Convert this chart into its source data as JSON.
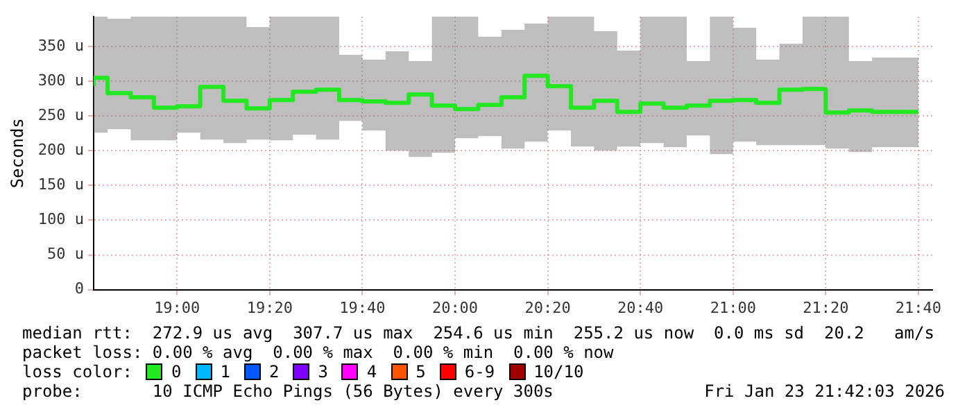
{
  "chart_data": {
    "type": "step",
    "ylabel": "Seconds",
    "legend_title": "loss color:",
    "legend": "bottom",
    "grid": true,
    "x": [
      18.7,
      18.75,
      18.8333,
      18.9167,
      19,
      19.0833,
      19.1667,
      19.25,
      19.3333,
      19.4167,
      19.5,
      19.5833,
      19.6667,
      19.75,
      19.8333,
      19.9167,
      20,
      20.0833,
      20.1667,
      20.25,
      20.3333,
      20.4167,
      20.5,
      20.5833,
      20.6667,
      20.75,
      20.8333,
      20.9167,
      21,
      21.0833,
      21.1667,
      21.25,
      21.3333,
      21.4167,
      21.5,
      21.5833,
      21.6667
    ],
    "xlim": [
      18.7,
      21.7167
    ],
    "xticks": [
      {
        "value": 19,
        "label": "19:00"
      },
      {
        "value": 19.3333,
        "label": "19:20"
      },
      {
        "value": 19.6667,
        "label": "19:40"
      },
      {
        "value": 20,
        "label": "20:00"
      },
      {
        "value": 20.3333,
        "label": "20:20"
      },
      {
        "value": 20.6667,
        "label": "20:40"
      },
      {
        "value": 21,
        "label": "21:00"
      },
      {
        "value": 21.3333,
        "label": "21:20"
      },
      {
        "value": 21.6667,
        "label": "21:40"
      }
    ],
    "ylim": [
      0,
      393
    ],
    "yticks": [
      0,
      {
        "value": 50,
        "label": "50 u"
      },
      {
        "value": 100,
        "label": "100 u"
      },
      {
        "value": 150,
        "label": "150 u"
      },
      {
        "value": 200,
        "label": "200 u"
      },
      {
        "value": 250,
        "label": "250 u"
      },
      {
        "value": 300,
        "label": "300 u"
      },
      {
        "value": 350,
        "label": "350 u"
      }
    ],
    "series": [
      {
        "name": "0",
        "color": "#22e822",
        "values": [
          293,
          305,
          283,
          277,
          262,
          264,
          292,
          272,
          261,
          273,
          285,
          288,
          273,
          271,
          269,
          281,
          265,
          260,
          266,
          277,
          308,
          293,
          262,
          272,
          256,
          268,
          262,
          265,
          272,
          273,
          269,
          288,
          289,
          255,
          258,
          256,
          256
        ],
        "lower": [
          213,
          226,
          231,
          215,
          215,
          226,
          216,
          211,
          216,
          215,
          223,
          216,
          243,
          229,
          200,
          191,
          197,
          218,
          221,
          203,
          213,
          229,
          206,
          200,
          206,
          211,
          205,
          222,
          195,
          213,
          208,
          208,
          208,
          203,
          198,
          205,
          205
        ],
        "upper": [
          393,
          393,
          390,
          393,
          393,
          393,
          393,
          393,
          378,
          393,
          393,
          393,
          338,
          331,
          343,
          329,
          393,
          393,
          364,
          374,
          383,
          393,
          393,
          372,
          344,
          393,
          393,
          329,
          393,
          377,
          331,
          354,
          393,
          393,
          329,
          334,
          334
        ]
      },
      {
        "name": "1",
        "color": "#00b8ff",
        "values": [
          null,
          null,
          null,
          null,
          null,
          null,
          null,
          null,
          null,
          null,
          null,
          null,
          null,
          null,
          null,
          null,
          null,
          null,
          null,
          null,
          null,
          null,
          null,
          null,
          null,
          null,
          null,
          null,
          null,
          null,
          null,
          null,
          null,
          null,
          null,
          null,
          null
        ]
      },
      {
        "name": "2",
        "color": "#0059ff",
        "values": [
          null,
          null,
          null,
          null,
          null,
          null,
          null,
          null,
          null,
          null,
          null,
          null,
          null,
          null,
          null,
          null,
          null,
          null,
          null,
          null,
          null,
          null,
          null,
          null,
          null,
          null,
          null,
          null,
          null,
          null,
          null,
          null,
          null,
          null,
          null,
          null,
          null
        ]
      },
      {
        "name": "3",
        "color": "#7e00ff",
        "values": [
          null,
          null,
          null,
          null,
          null,
          null,
          null,
          null,
          null,
          null,
          null,
          null,
          null,
          null,
          null,
          null,
          null,
          null,
          null,
          null,
          null,
          null,
          null,
          null,
          null,
          null,
          null,
          null,
          null,
          null,
          null,
          null,
          null,
          null,
          null,
          null,
          null
        ]
      },
      {
        "name": "4",
        "color": "#ff00ff",
        "values": [
          null,
          null,
          null,
          null,
          null,
          null,
          null,
          null,
          null,
          null,
          null,
          null,
          null,
          null,
          null,
          null,
          null,
          null,
          null,
          null,
          null,
          null,
          null,
          null,
          null,
          null,
          null,
          null,
          null,
          null,
          null,
          null,
          null,
          null,
          null,
          null,
          null
        ]
      },
      {
        "name": "5",
        "color": "#ff5500",
        "values": [
          null,
          null,
          null,
          null,
          null,
          null,
          null,
          null,
          null,
          null,
          null,
          null,
          null,
          null,
          null,
          null,
          null,
          null,
          null,
          null,
          null,
          null,
          null,
          null,
          null,
          null,
          null,
          null,
          null,
          null,
          null,
          null,
          null,
          null,
          null,
          null,
          null
        ]
      },
      {
        "name": "6-9",
        "color": "#ff0000",
        "values": [
          null,
          null,
          null,
          null,
          null,
          null,
          null,
          null,
          null,
          null,
          null,
          null,
          null,
          null,
          null,
          null,
          null,
          null,
          null,
          null,
          null,
          null,
          null,
          null,
          null,
          null,
          null,
          null,
          null,
          null,
          null,
          null,
          null,
          null,
          null,
          null,
          null
        ]
      },
      {
        "name": "10/10",
        "color": "#a10000",
        "values": [
          null,
          null,
          null,
          null,
          null,
          null,
          null,
          null,
          null,
          null,
          null,
          null,
          null,
          null,
          null,
          null,
          null,
          null,
          null,
          null,
          null,
          null,
          null,
          null,
          null,
          null,
          null,
          null,
          null,
          null,
          null,
          null,
          null,
          null,
          null,
          null,
          null
        ]
      }
    ],
    "annotations": [
      "median rtt:  272.9 us avg  307.7 us max  254.6 us min  255.2 us now  0.0 ms sd  20.2   am/s",
      "packet loss: 0.00 % avg  0.00 % max  0.00 % min  0.00 % now",
      "probe:       10 ICMP Echo Pings (56 Bytes) every 300s",
      "Fri Jan 23 21:42:03 2026"
    ]
  }
}
